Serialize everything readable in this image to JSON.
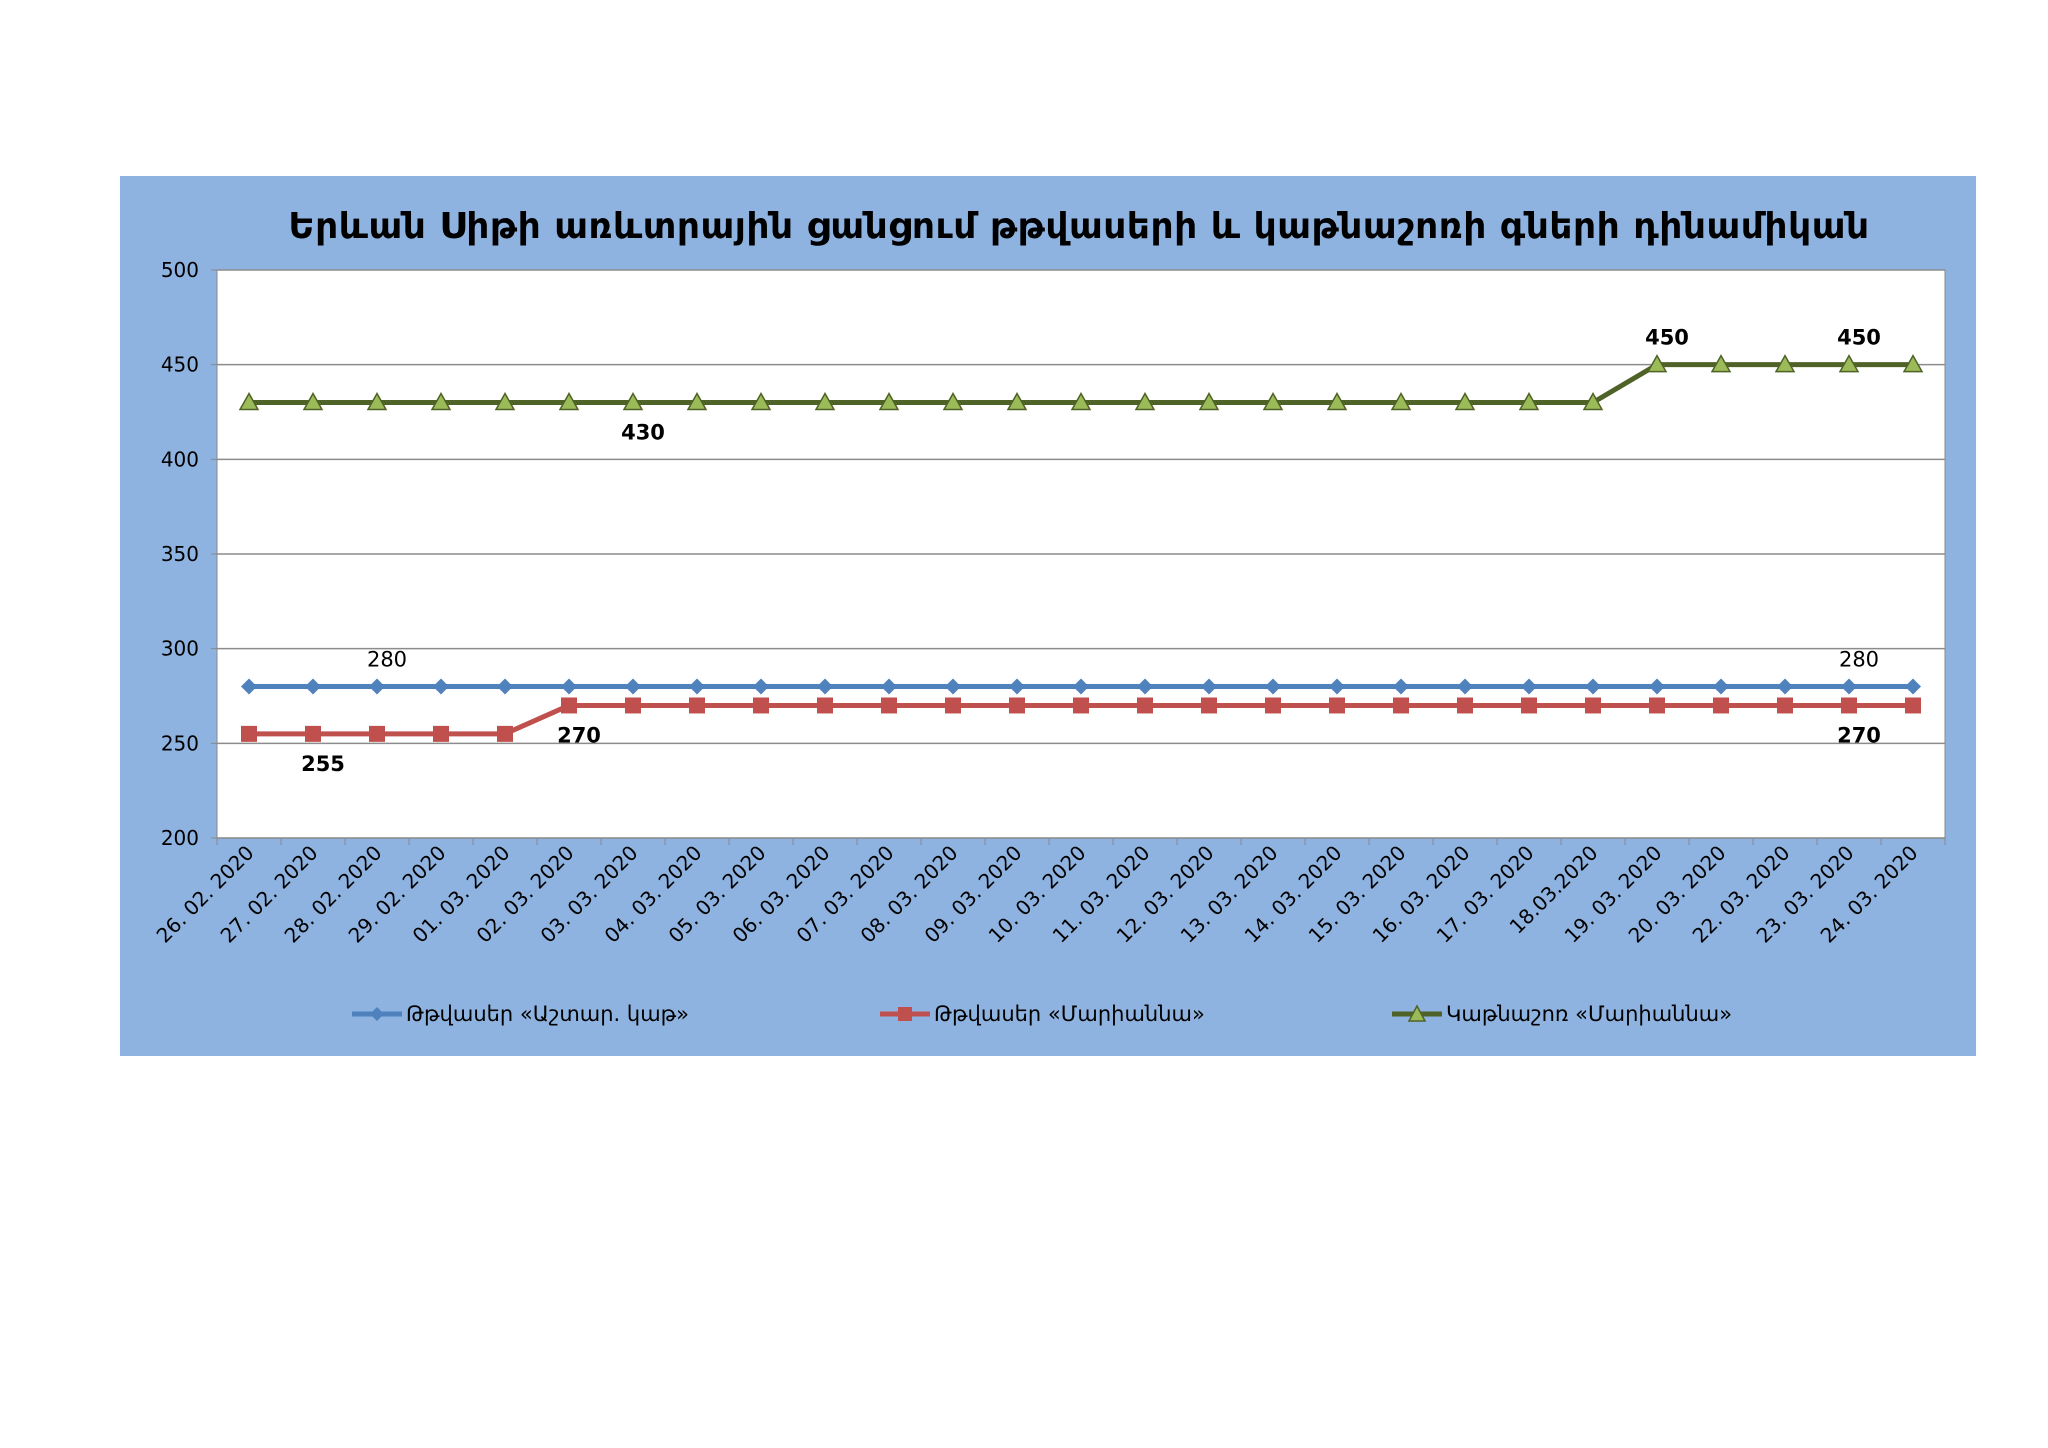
{
  "chart_data": {
    "type": "line",
    "title": "Երևան Սիթի առևտրային ցանցում թթվասերի և կաթնաշոռի գների դինամիկան",
    "categories": [
      "26. 02. 2020",
      "27. 02. 2020",
      "28. 02. 2020",
      "29. 02. 2020",
      "01. 03. 2020",
      "02. 03. 2020",
      "03. 03. 2020",
      "04. 03. 2020",
      "05. 03. 2020",
      "06. 03. 2020",
      "07. 03. 2020",
      "08. 03. 2020",
      "09. 03. 2020",
      "10. 03. 2020",
      "11. 03. 2020",
      "12. 03. 2020",
      "13. 03. 2020",
      "14. 03. 2020",
      "15. 03. 2020",
      "16. 03. 2020",
      "17. 03. 2020",
      "18.03.2020",
      "19. 03. 2020",
      "20. 03. 2020",
      "22. 03. 2020",
      "23. 03. 2020",
      "24. 03. 2020"
    ],
    "ylim": [
      200,
      500
    ],
    "yticks": [
      "200",
      "250",
      "300",
      "350",
      "400",
      "450",
      "500"
    ],
    "grid": true,
    "legend_position": "bottom",
    "series": [
      {
        "name": "Թթվասեր «Աշտար. կաթ»",
        "color": "#4f81bd",
        "marker": "diamond",
        "values": [
          280,
          280,
          280,
          280,
          280,
          280,
          280,
          280,
          280,
          280,
          280,
          280,
          280,
          280,
          280,
          280,
          280,
          280,
          280,
          280,
          280,
          280,
          280,
          280,
          280,
          280,
          280
        ]
      },
      {
        "name": "Թթվասեր «Մարիաննա»",
        "color": "#c0504d",
        "marker": "square",
        "values": [
          255,
          255,
          255,
          255,
          255,
          270,
          270,
          270,
          270,
          270,
          270,
          270,
          270,
          270,
          270,
          270,
          270,
          270,
          270,
          270,
          270,
          270,
          270,
          270,
          270,
          270,
          270
        ]
      },
      {
        "name": "Կաթնաշոռ «Մարիաննա»",
        "color": "#4f6228",
        "marker_fill": "#9bbb59",
        "marker": "triangle",
        "values": [
          430,
          430,
          430,
          430,
          430,
          430,
          430,
          430,
          430,
          430,
          430,
          430,
          430,
          430,
          430,
          430,
          430,
          430,
          430,
          430,
          430,
          430,
          450,
          450,
          450,
          450,
          450
        ]
      }
    ],
    "data_labels": [
      {
        "series": 0,
        "index": 2,
        "text": "280",
        "pos": "above",
        "bold": false
      },
      {
        "series": 0,
        "index": 25,
        "text": "280",
        "pos": "above",
        "bold": false
      },
      {
        "series": 1,
        "index": 1,
        "text": "255",
        "pos": "below",
        "bold": true
      },
      {
        "series": 1,
        "index": 5,
        "text": "270",
        "pos": "below",
        "bold": true
      },
      {
        "series": 1,
        "index": 25,
        "text": "270",
        "pos": "below",
        "bold": true
      },
      {
        "series": 2,
        "index": 6,
        "text": "430",
        "pos": "below",
        "bold": true
      },
      {
        "series": 2,
        "index": 22,
        "text": "450",
        "pos": "above",
        "bold": true
      },
      {
        "series": 2,
        "index": 25,
        "text": "450",
        "pos": "above",
        "bold": true
      }
    ]
  }
}
